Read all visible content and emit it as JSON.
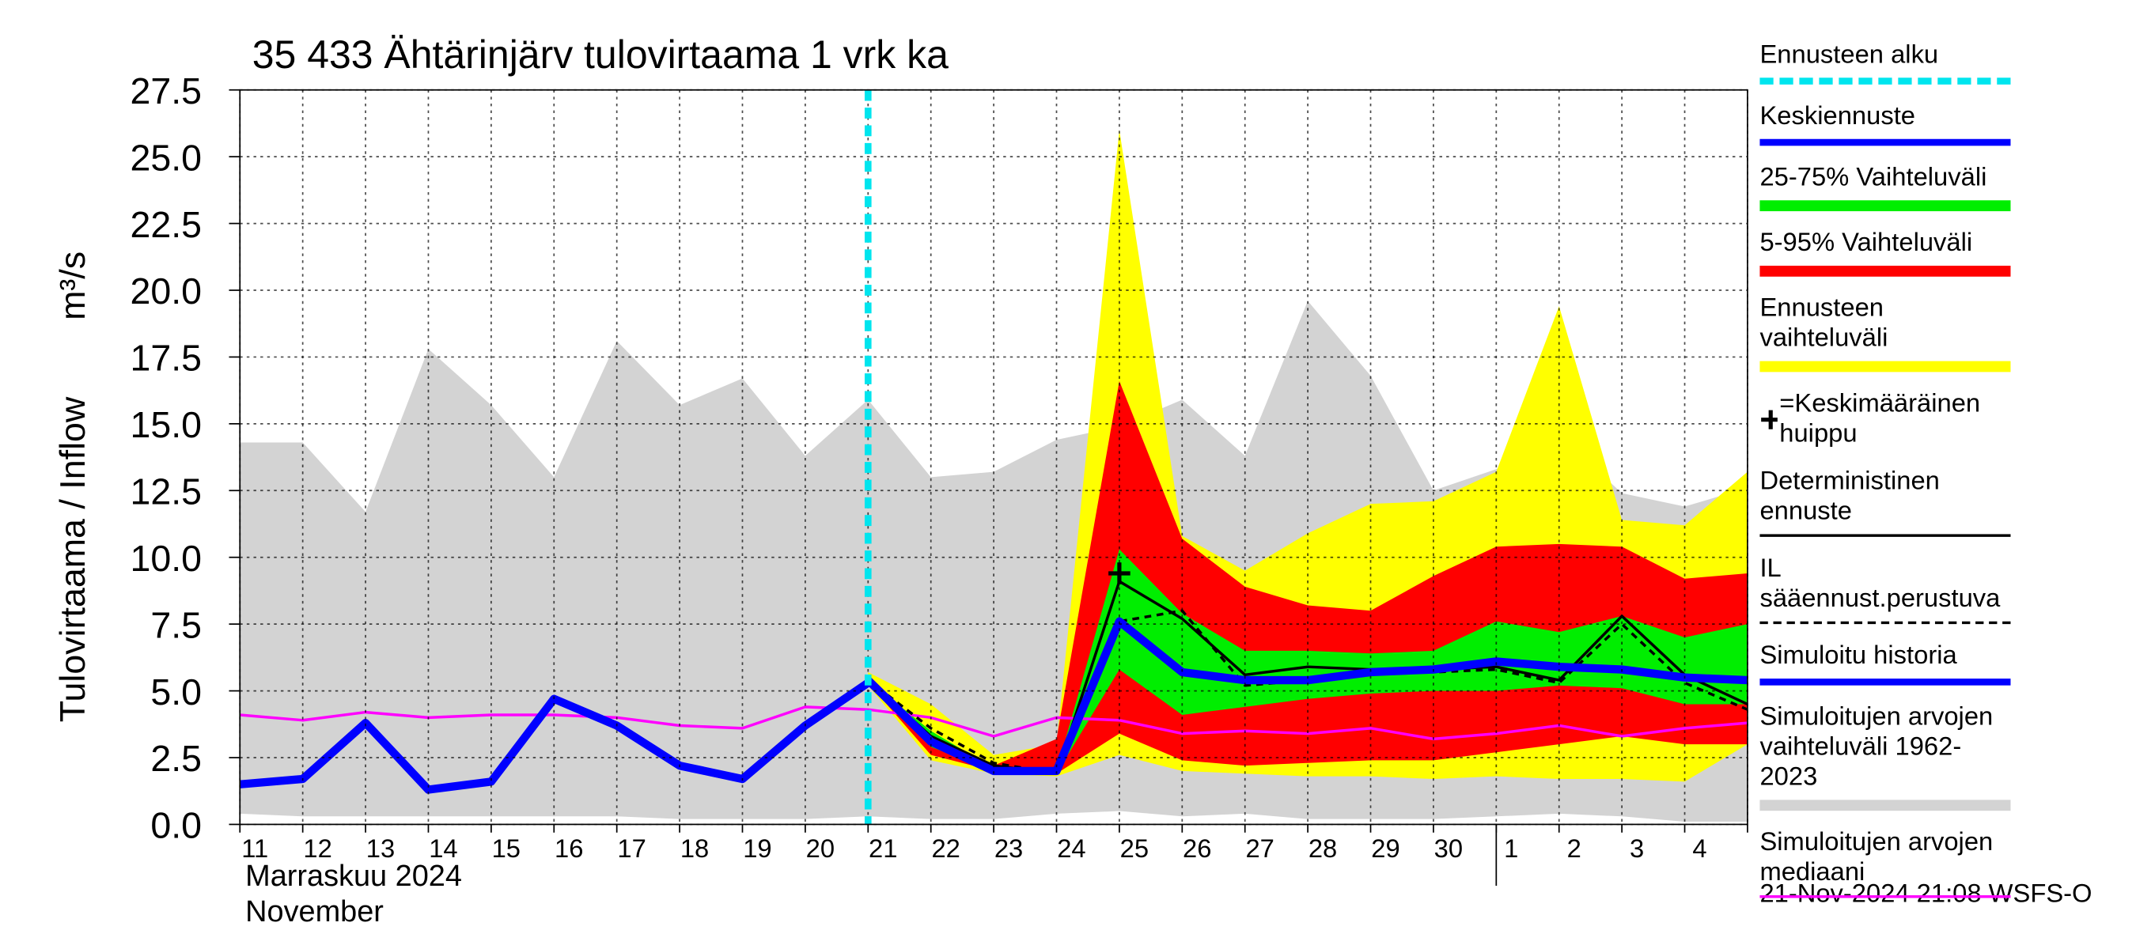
{
  "chart_data": {
    "type": "line",
    "title": "35 433 Ähtärinjärv tulovirtaama 1 vrk ka",
    "y_label": "Tulovirtaama / Inflow",
    "y_unit": "m³/s",
    "month_label_fi": "Marraskuu 2024",
    "month_label_en": "November",
    "timestamp": "21-Nov-2024 21:08 WSFS-O",
    "categories": [
      "11",
      "12",
      "13",
      "14",
      "15",
      "16",
      "17",
      "18",
      "19",
      "20",
      "21",
      "22",
      "23",
      "24",
      "25",
      "26",
      "27",
      "28",
      "29",
      "30",
      "1",
      "2",
      "3",
      "4",
      null
    ],
    "ylim": [
      0,
      27.5
    ],
    "yticks": [
      {
        "value": 0,
        "label": "0.0"
      },
      2.5,
      {
        "value": 5,
        "label": "5.0"
      },
      7.5,
      {
        "value": 10,
        "label": "10.0"
      },
      12.5,
      {
        "value": 15,
        "label": "15.0"
      },
      17.5,
      {
        "value": 20,
        "label": "20.0"
      },
      22.5,
      {
        "value": 25,
        "label": "25.0"
      },
      27.5
    ],
    "grid": true,
    "forecast_start": {
      "name": "Ennusteen alku",
      "category": "21",
      "color": "#00e5ee"
    },
    "peak": {
      "name": "=Keskimääräinen huippu",
      "category": "25",
      "value": 9.4
    },
    "series": [
      {
        "name": "Keskiennuste",
        "color": "#0000ff",
        "style": "thick",
        "values": [
          null,
          null,
          null,
          null,
          null,
          null,
          null,
          null,
          null,
          null,
          5.4,
          3.1,
          2.0,
          2.0,
          7.6,
          5.7,
          5.4,
          5.4,
          5.7,
          5.8,
          6.1,
          5.9,
          5.8,
          5.5,
          5.4
        ]
      },
      {
        "name": "25-75% Vaihteluväli",
        "color": "#00ee00",
        "style": "band",
        "values": [
          null,
          null,
          null,
          null,
          null,
          null,
          null,
          null,
          null,
          null,
          5.4,
          3.5,
          2.1,
          2.0,
          10.3,
          7.9,
          6.5,
          6.5,
          6.4,
          6.5,
          7.6,
          7.2,
          7.8,
          7.0,
          7.5
        ],
        "low": [
          null,
          null,
          null,
          null,
          null,
          null,
          null,
          null,
          null,
          null,
          5.3,
          2.9,
          2.0,
          1.9,
          5.8,
          4.1,
          4.4,
          4.7,
          4.9,
          5.0,
          5.0,
          5.2,
          5.1,
          4.5,
          4.5
        ]
      },
      {
        "name": "5-95% Vaihteluväli",
        "color": "#ff0000",
        "style": "band",
        "values": [
          null,
          null,
          null,
          null,
          null,
          null,
          null,
          null,
          null,
          null,
          5.5,
          3.2,
          2.2,
          3.2,
          16.6,
          10.7,
          8.9,
          8.2,
          8.0,
          9.3,
          10.4,
          10.5,
          10.4,
          9.2,
          9.4
        ],
        "low": [
          null,
          null,
          null,
          null,
          null,
          null,
          null,
          null,
          null,
          null,
          5.3,
          2.6,
          2.0,
          1.9,
          3.4,
          2.4,
          2.2,
          2.3,
          2.4,
          2.4,
          2.7,
          3.0,
          3.3,
          3.0,
          3.0
        ]
      },
      {
        "name": "Ennusteen vaihteluväli",
        "color": "#ffff00",
        "style": "band",
        "values": [
          null,
          null,
          null,
          null,
          null,
          null,
          null,
          null,
          null,
          null,
          5.7,
          4.5,
          2.6,
          3.0,
          26.0,
          10.8,
          9.5,
          10.9,
          12.0,
          12.1,
          13.2,
          19.4,
          11.4,
          11.2,
          13.2
        ],
        "low": [
          null,
          null,
          null,
          null,
          null,
          null,
          null,
          null,
          null,
          null,
          5.2,
          2.4,
          1.9,
          1.8,
          2.6,
          2.0,
          1.9,
          1.8,
          1.8,
          1.7,
          1.8,
          1.7,
          1.7,
          1.6,
          3.0
        ]
      },
      {
        "name": "Deterministinen ennuste",
        "color": "#000000",
        "style": "thin",
        "values": [
          null,
          null,
          null,
          null,
          null,
          null,
          null,
          null,
          null,
          null,
          5.4,
          3.3,
          2.2,
          1.9,
          9.1,
          7.7,
          5.6,
          5.9,
          5.8,
          5.8,
          5.9,
          5.4,
          7.8,
          5.6,
          4.5
        ]
      },
      {
        "name": "IL sääennust.perustuva",
        "color": "#000000",
        "style": "dashed",
        "values": [
          null,
          null,
          null,
          null,
          null,
          null,
          null,
          null,
          null,
          null,
          5.4,
          3.6,
          2.3,
          1.9,
          7.6,
          8.0,
          5.2,
          5.4,
          5.8,
          5.7,
          5.8,
          5.3,
          7.5,
          5.3,
          4.3
        ]
      },
      {
        "name": "Simuloitu historia",
        "color": "#0000ff",
        "style": "thick",
        "values": [
          1.5,
          1.7,
          3.8,
          1.3,
          1.6,
          4.7,
          3.7,
          2.2,
          1.7,
          3.7,
          5.3,
          null,
          null,
          null,
          null,
          null,
          null,
          null,
          null,
          null,
          null,
          null,
          null,
          null,
          null
        ]
      },
      {
        "name": "Simuloitujen arvojen vaihteluväli 1962-2023",
        "color": "#d3d3d3",
        "style": "band",
        "values": [
          14.3,
          14.3,
          11.7,
          17.8,
          15.7,
          13.0,
          18.1,
          15.7,
          16.7,
          13.8,
          15.9,
          13.0,
          13.2,
          14.4,
          14.9,
          15.9,
          13.8,
          19.6,
          16.8,
          12.5,
          13.3,
          14.6,
          12.4,
          11.9,
          12.6
        ],
        "low": [
          0.4,
          0.3,
          0.3,
          0.3,
          0.3,
          0.3,
          0.3,
          0.2,
          0.2,
          0.2,
          0.3,
          0.2,
          0.2,
          0.4,
          0.5,
          0.3,
          0.4,
          0.2,
          0.2,
          0.2,
          0.3,
          0.4,
          0.3,
          0.1,
          0.1
        ]
      },
      {
        "name": "Simuloitujen arvojen mediaani",
        "color": "#ff00ff",
        "style": "thin",
        "values": [
          4.1,
          3.9,
          4.2,
          4.0,
          4.1,
          4.1,
          4.0,
          3.7,
          3.6,
          4.4,
          4.3,
          4.0,
          3.3,
          4.0,
          3.9,
          3.4,
          3.5,
          3.4,
          3.6,
          3.2,
          3.4,
          3.7,
          3.3,
          3.6,
          3.8
        ]
      }
    ]
  }
}
